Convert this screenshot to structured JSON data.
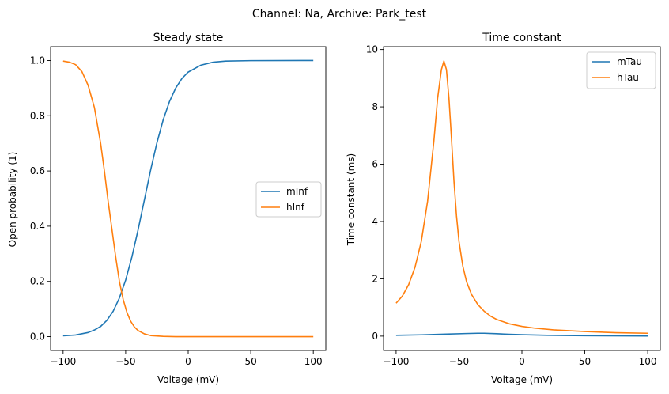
{
  "suptitle": "Channel: Na, Archive: Park_test",
  "chart_data": [
    {
      "type": "line",
      "title": "Steady state",
      "xlabel": "Voltage (mV)",
      "ylabel": "Open probability (1)",
      "xlim": [
        -110,
        110
      ],
      "ylim": [
        -0.05,
        1.05
      ],
      "xticks": [
        -100,
        -50,
        0,
        50,
        100
      ],
      "xtick_labels": [
        "−100",
        "−50",
        "0",
        "50",
        "100"
      ],
      "yticks": [
        0.0,
        0.2,
        0.4,
        0.6,
        0.8,
        1.0
      ],
      "ytick_labels": [
        "0.0",
        "0.2",
        "0.4",
        "0.6",
        "0.8",
        "1.0"
      ],
      "legend_position": "center-right",
      "series": [
        {
          "name": "mInf",
          "color": "#1f77b4",
          "x": [
            -100,
            -90,
            -80,
            -75,
            -70,
            -65,
            -60,
            -55,
            -50,
            -45,
            -40,
            -35,
            -30,
            -25,
            -20,
            -15,
            -10,
            -5,
            0,
            10,
            20,
            30,
            50,
            100
          ],
          "y": [
            0.003,
            0.006,
            0.015,
            0.024,
            0.037,
            0.059,
            0.092,
            0.14,
            0.205,
            0.289,
            0.388,
            0.496,
            0.604,
            0.702,
            0.785,
            0.851,
            0.9,
            0.935,
            0.958,
            0.983,
            0.994,
            0.998,
            0.9995,
            1.0
          ]
        },
        {
          "name": "hInf",
          "color": "#ff7f0e",
          "x": [
            -100,
            -95,
            -90,
            -85,
            -80,
            -75,
            -70,
            -67,
            -64,
            -61,
            -58,
            -55,
            -52,
            -49,
            -46,
            -43,
            -40,
            -35,
            -30,
            -20,
            -10,
            0,
            50,
            100
          ],
          "y": [
            0.998,
            0.994,
            0.985,
            0.96,
            0.91,
            0.83,
            0.7,
            0.6,
            0.49,
            0.39,
            0.29,
            0.2,
            0.135,
            0.088,
            0.056,
            0.035,
            0.022,
            0.01,
            0.004,
            0.001,
            0.0,
            0.0,
            0.0,
            0.0
          ]
        }
      ]
    },
    {
      "type": "line",
      "title": "Time constant",
      "xlabel": "Voltage (mV)",
      "ylabel": "Time constant (ms)",
      "xlim": [
        -110,
        110
      ],
      "ylim": [
        -0.5,
        10.1
      ],
      "xticks": [
        -100,
        -50,
        0,
        50,
        100
      ],
      "xtick_labels": [
        "−100",
        "−50",
        "0",
        "50",
        "100"
      ],
      "yticks": [
        0,
        2,
        4,
        6,
        8,
        10
      ],
      "ytick_labels": [
        "0",
        "2",
        "4",
        "6",
        "8",
        "10"
      ],
      "legend_position": "top-right",
      "series": [
        {
          "name": "mTau",
          "color": "#1f77b4",
          "x": [
            -100,
            -80,
            -60,
            -45,
            -35,
            -30,
            -20,
            -10,
            0,
            20,
            50,
            100
          ],
          "y": [
            0.03,
            0.045,
            0.07,
            0.09,
            0.1,
            0.1,
            0.085,
            0.065,
            0.05,
            0.03,
            0.015,
            0.005
          ]
        },
        {
          "name": "hTau",
          "color": "#ff7f0e",
          "x": [
            -100,
            -95,
            -90,
            -85,
            -80,
            -75,
            -70,
            -67,
            -64,
            -62,
            -60,
            -58,
            -56,
            -54,
            -52,
            -50,
            -47,
            -44,
            -40,
            -35,
            -30,
            -25,
            -20,
            -10,
            0,
            10,
            25,
            50,
            75,
            100
          ],
          "y": [
            1.15,
            1.4,
            1.8,
            2.4,
            3.3,
            4.7,
            6.8,
            8.3,
            9.3,
            9.6,
            9.3,
            8.3,
            6.9,
            5.4,
            4.2,
            3.3,
            2.45,
            1.9,
            1.45,
            1.1,
            0.87,
            0.7,
            0.58,
            0.43,
            0.34,
            0.28,
            0.22,
            0.16,
            0.12,
            0.1
          ]
        }
      ]
    }
  ]
}
